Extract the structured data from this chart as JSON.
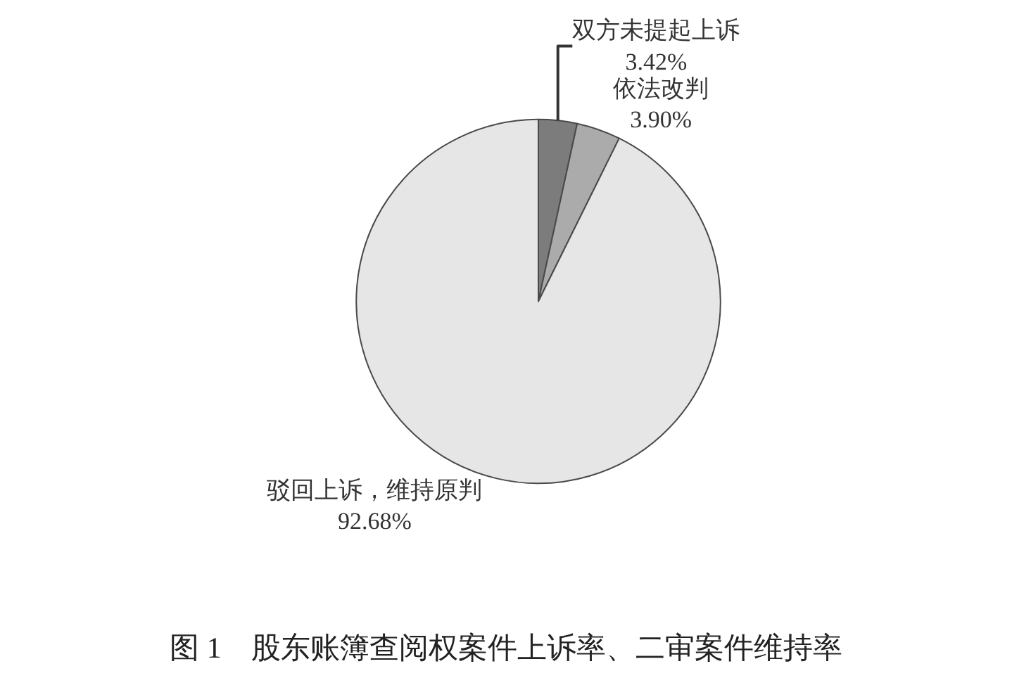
{
  "chart_data": {
    "type": "pie",
    "title": "图 1　股东账簿查阅权案件上诉率、二审案件维持率",
    "categories": [
      "双方未提起上诉",
      "依法改判",
      "驳回上诉，维持原判"
    ],
    "values": [
      3.42,
      3.9,
      92.68
    ],
    "value_labels": [
      "3.42%",
      "3.90%",
      "92.68%"
    ],
    "colors": [
      "#7c7c7c",
      "#ababab",
      "#e6e6e6"
    ]
  }
}
